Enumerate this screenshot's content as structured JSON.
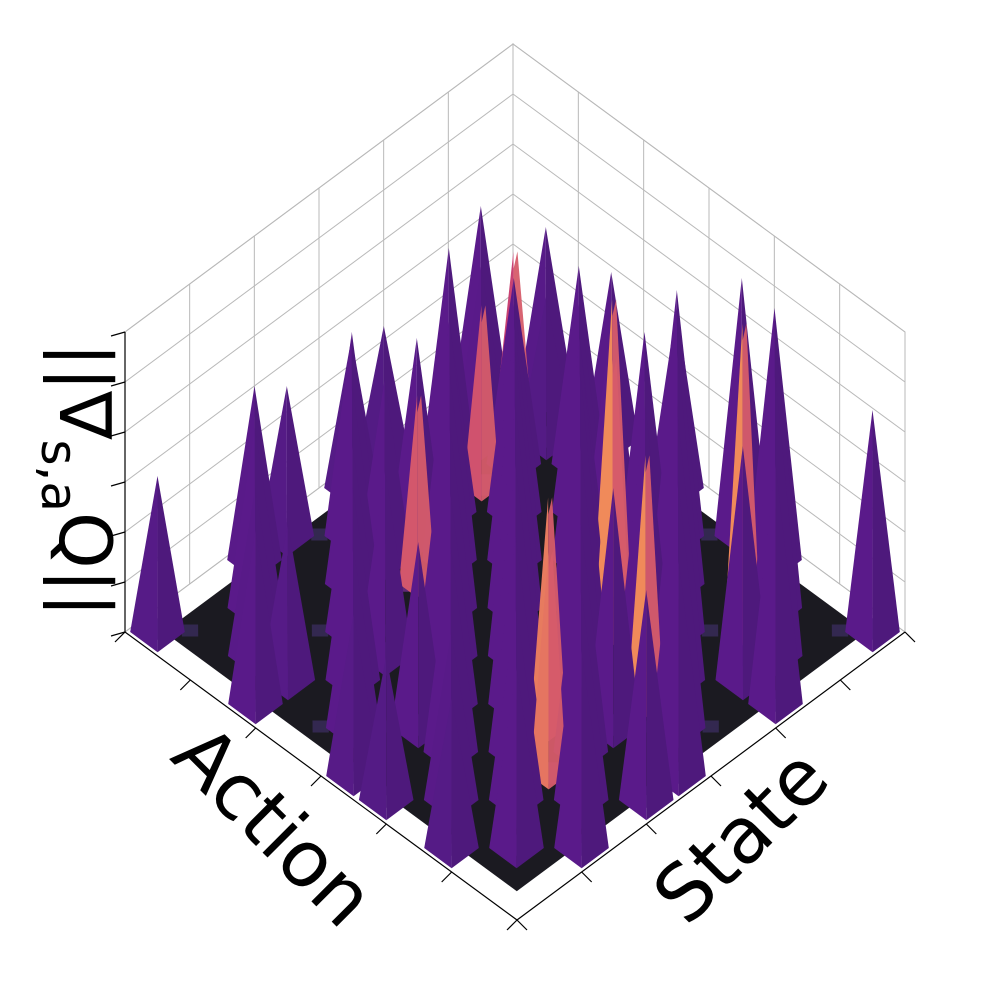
{
  "chart_data": {
    "type": "surface3d",
    "xlabel": "Action",
    "ylabel": "State",
    "zlabel": "||∇s,aQ||",
    "zlabel_main": "||∇",
    "zlabel_sub": "s,a",
    "zlabel_tail": "Q||",
    "grid": true,
    "colormap": "magma",
    "x_ticks": 7,
    "y_ticks": 7,
    "z_ticks": 7,
    "description_note": "",
    "peaks": [
      {
        "a": 0.5,
        "s": 1.5,
        "v": 0.55
      },
      {
        "a": 1.5,
        "s": 0.5,
        "v": 0.62
      },
      {
        "a": 2.5,
        "s": 1.5,
        "v": 0.58
      },
      {
        "a": 1.5,
        "s": 3.5,
        "v": 0.66
      },
      {
        "a": 3.5,
        "s": 1.5,
        "v": 0.72
      },
      {
        "a": 2.5,
        "s": 4.5,
        "v": 0.7
      },
      {
        "a": 4.5,
        "s": 2.5,
        "v": 0.64
      },
      {
        "a": 0.5,
        "s": 5.5,
        "v": 0.6
      },
      {
        "a": 5.5,
        "s": 0.5,
        "v": 0.5
      },
      {
        "a": 3.5,
        "s": 5.5,
        "v": 0.74
      },
      {
        "a": 5.5,
        "s": 3.5,
        "v": 0.8
      },
      {
        "a": 6.5,
        "s": 1.5,
        "v": 0.68
      },
      {
        "a": 1.5,
        "s": 6.5,
        "v": 0.82
      },
      {
        "a": 4.5,
        "s": 6.5,
        "v": 0.9
      },
      {
        "a": 6.5,
        "s": 4.5,
        "v": 0.78
      },
      {
        "a": 7.5,
        "s": 2.5,
        "v": 0.66
      },
      {
        "a": 2.5,
        "s": 7.5,
        "v": 0.88
      },
      {
        "a": 7.5,
        "s": 5.5,
        "v": 0.76
      },
      {
        "a": 5.5,
        "s": 7.5,
        "v": 0.95
      },
      {
        "a": 8.5,
        "s": 0.5,
        "v": 0.58
      },
      {
        "a": 0.5,
        "s": 8.5,
        "v": 0.84
      },
      {
        "a": 8.5,
        "s": 3.5,
        "v": 0.62
      },
      {
        "a": 3.5,
        "s": 8.5,
        "v": 0.93
      },
      {
        "a": 9.5,
        "s": 1.5,
        "v": 0.6
      },
      {
        "a": 1.5,
        "s": 9.5,
        "v": 0.92
      },
      {
        "a": 6.5,
        "s": 8.5,
        "v": 0.86
      },
      {
        "a": 8.5,
        "s": 6.5,
        "v": 0.7
      },
      {
        "a": 9.5,
        "s": 4.5,
        "v": 0.64
      },
      {
        "a": 4.5,
        "s": 9.5,
        "v": 0.88
      },
      {
        "a": 10.5,
        "s": 2.5,
        "v": 0.56
      },
      {
        "a": 2.5,
        "s": 10.5,
        "v": 0.94
      },
      {
        "a": 10.5,
        "s": 5.5,
        "v": 0.6
      },
      {
        "a": 5.5,
        "s": 10.5,
        "v": 0.82
      },
      {
        "a": 7.5,
        "s": 9.5,
        "v": 0.76
      },
      {
        "a": 9.5,
        "s": 7.5,
        "v": 0.68
      },
      {
        "a": 11.5,
        "s": 0.5,
        "v": 0.52
      },
      {
        "a": 0.5,
        "s": 11.5,
        "v": 0.74
      },
      {
        "a": 11.5,
        "s": 3.5,
        "v": 0.58
      },
      {
        "a": 3.5,
        "s": 11.5,
        "v": 0.8
      },
      {
        "a": 6.5,
        "s": 11.5,
        "v": 0.72
      },
      {
        "a": 11.5,
        "s": 6.5,
        "v": 0.54
      },
      {
        "a": 8.5,
        "s": 10.5,
        "v": 0.7
      },
      {
        "a": 10.5,
        "s": 8.5,
        "v": 0.56
      },
      {
        "a": 9.5,
        "s": 11.5,
        "v": 0.66
      },
      {
        "a": 11.5,
        "s": 9.5,
        "v": 0.5
      },
      {
        "a": 1.5,
        "s": 2.5,
        "v": 0.48
      },
      {
        "a": 2.5,
        "s": 2.5,
        "v": 0.62
      },
      {
        "a": 3.5,
        "s": 3.5,
        "v": 0.7
      },
      {
        "a": 4.5,
        "s": 4.5,
        "v": 0.78
      },
      {
        "a": 5.5,
        "s": 5.5,
        "v": 0.86
      },
      {
        "a": 6.5,
        "s": 6.5,
        "v": 0.84
      },
      {
        "a": 7.5,
        "s": 7.5,
        "v": 0.8
      },
      {
        "a": 8.5,
        "s": 8.5,
        "v": 0.72
      },
      {
        "a": 9.5,
        "s": 9.5,
        "v": 0.64
      },
      {
        "a": 10.5,
        "s": 10.5,
        "v": 0.6
      },
      {
        "a": 0.5,
        "s": 3.5,
        "v": 0.56
      },
      {
        "a": 4.5,
        "s": 0.5,
        "v": 0.46
      },
      {
        "a": 2.5,
        "s": 6.5,
        "v": 0.76
      },
      {
        "a": 6.5,
        "s": 2.5,
        "v": 0.6
      },
      {
        "a": 7.5,
        "s": 0.5,
        "v": 0.5
      },
      {
        "a": 0.5,
        "s": 7.5,
        "v": 0.86
      },
      {
        "a": 3.5,
        "s": 10.5,
        "v": 0.78
      },
      {
        "a": 10.5,
        "s": 3.5,
        "v": 0.52
      },
      {
        "a": 4.5,
        "s": 8.5,
        "v": 0.84
      },
      {
        "a": 8.5,
        "s": 4.5,
        "v": 0.62
      },
      {
        "a": 5.5,
        "s": 2.5,
        "v": 0.66
      },
      {
        "a": 2.5,
        "s": 5.5,
        "v": 0.74
      },
      {
        "a": 7.5,
        "s": 11.5,
        "v": 0.7
      },
      {
        "a": 11.5,
        "s": 7.5,
        "v": 0.48
      },
      {
        "a": 9.5,
        "s": 6.5,
        "v": 0.62
      },
      {
        "a": 6.5,
        "s": 9.5,
        "v": 0.8
      }
    ],
    "accent_peaks": [
      {
        "a": 2.5,
        "s": 9.5,
        "v": 1.0
      },
      {
        "a": 3.5,
        "s": 6.5,
        "v": 0.92
      },
      {
        "a": 4.5,
        "s": 7.5,
        "v": 0.88
      },
      {
        "a": 5.5,
        "s": 9.5,
        "v": 0.8
      },
      {
        "a": 7.5,
        "s": 8.5,
        "v": 0.74
      },
      {
        "a": 1.5,
        "s": 1.5,
        "v": 0.52
      },
      {
        "a": 6.5,
        "s": 3.5,
        "v": 0.6
      },
      {
        "a": 8.5,
        "s": 9.5,
        "v": 0.72
      },
      {
        "a": 3.5,
        "s": 2.5,
        "v": 0.58
      }
    ],
    "colors": {
      "floor": "#1b1a21",
      "low": "#3b1f70",
      "mid": "#5a1a8a",
      "high": "#c53d75",
      "peak": "#f08a5a",
      "grid": "#b9b9b9"
    }
  }
}
